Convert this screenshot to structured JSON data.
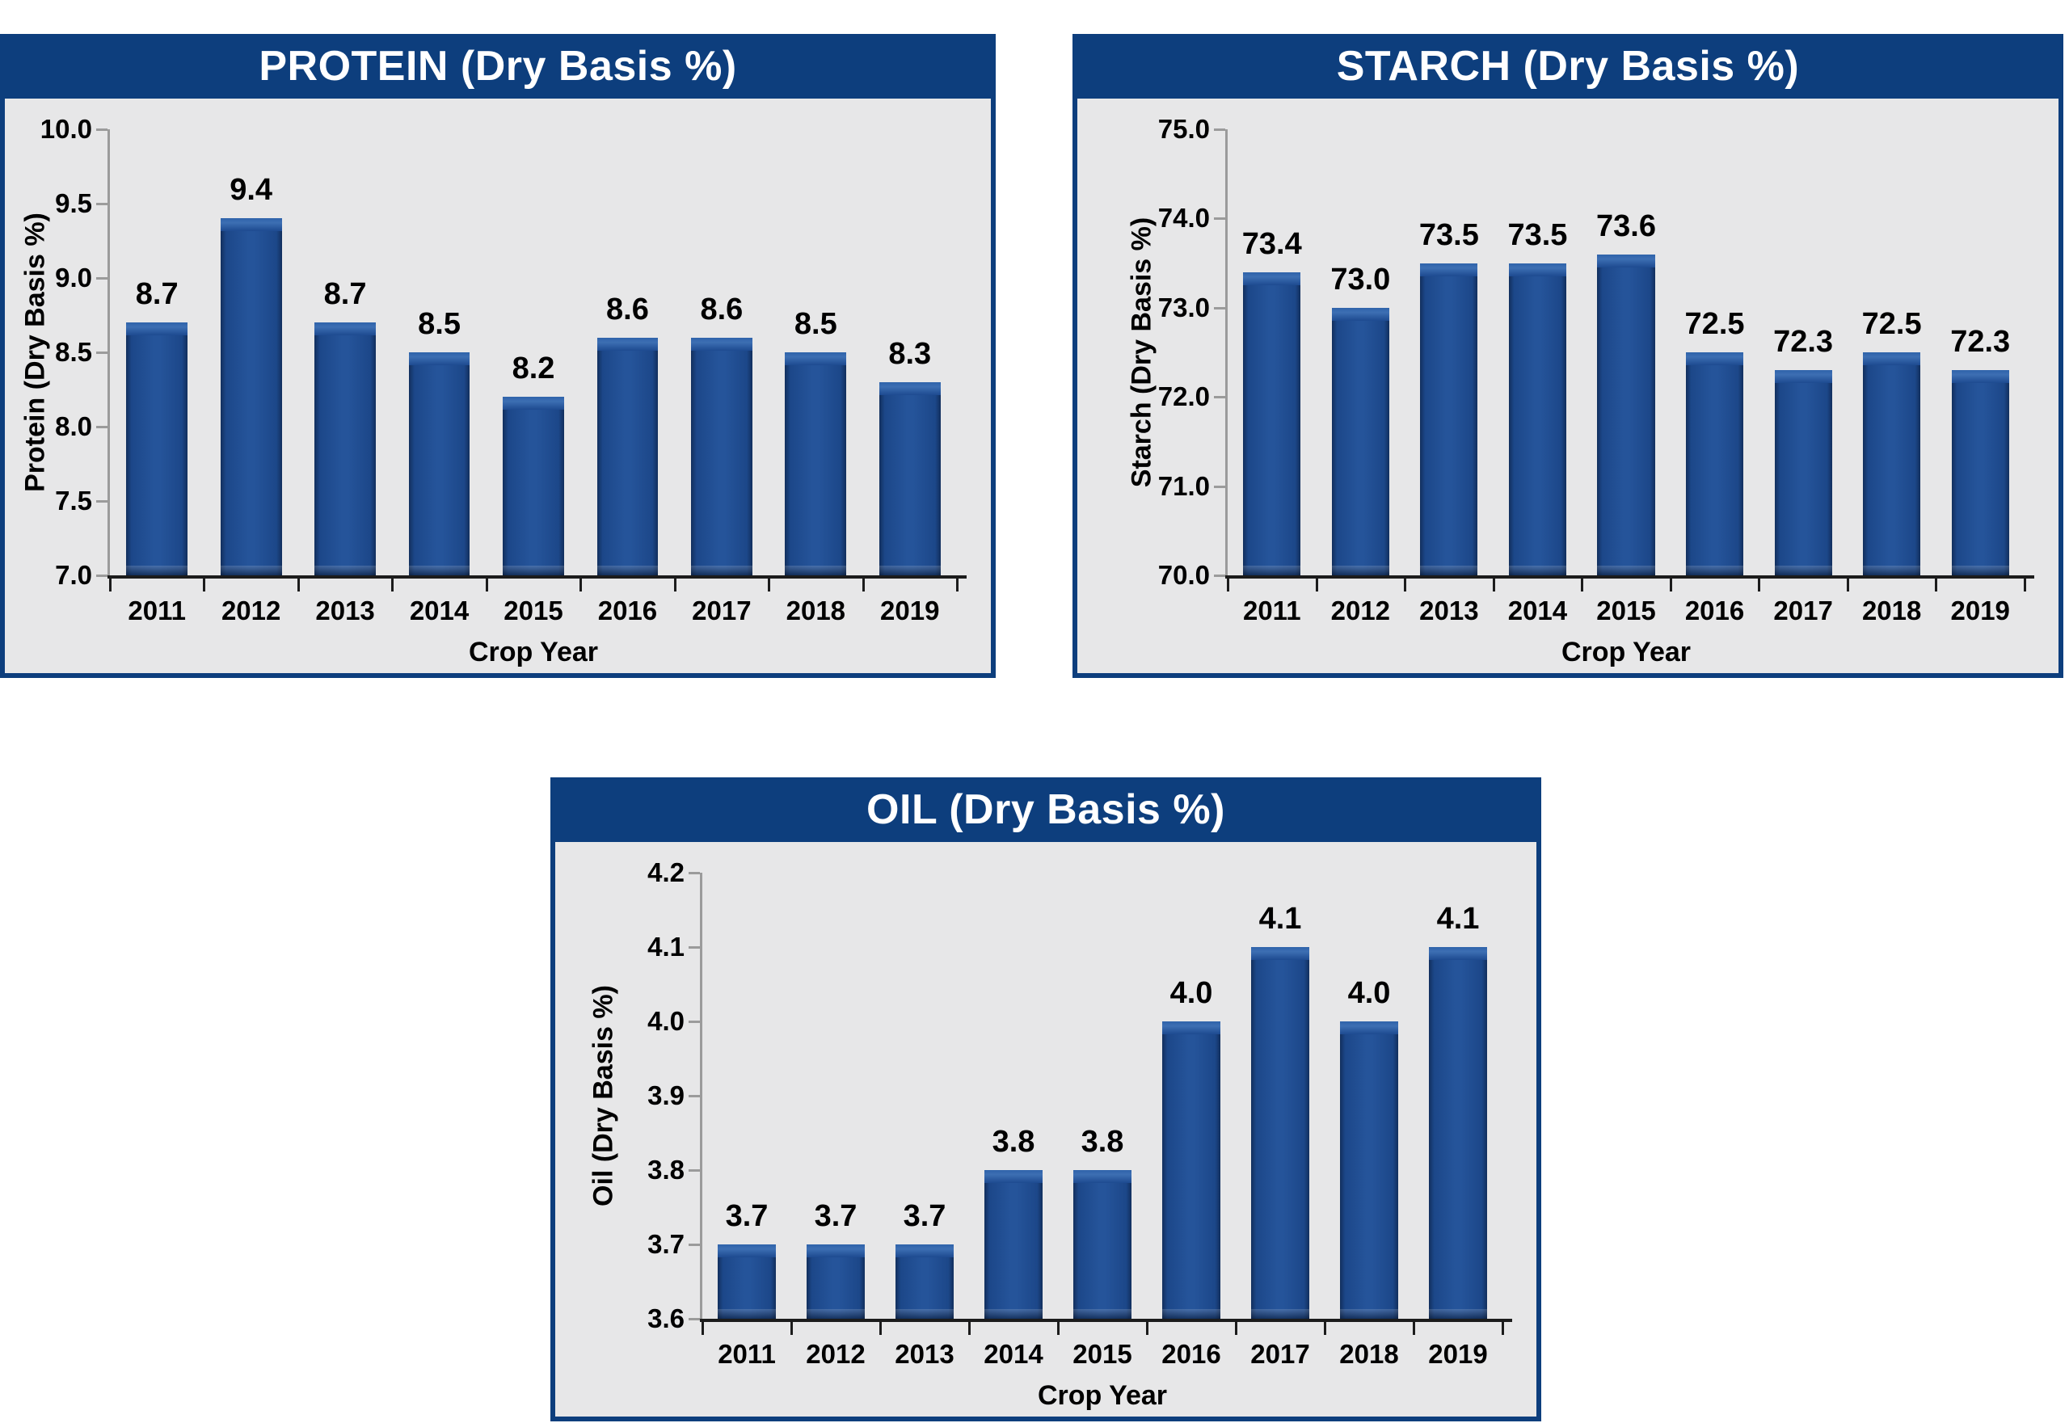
{
  "page": {
    "background": "#ffffff"
  },
  "colors": {
    "header_bar": "#0d3e7d",
    "panel_border": "#0d3e7d",
    "plot_background": "#e7e7e8",
    "bar_body": "#25549a",
    "bar_edge": "#122f5d",
    "bar_highlight": "#3d6fb3",
    "title_text": "#ffffff",
    "label_text": "#000000",
    "y_axis_line": "#9b9b9b",
    "x_axis_line": "#1c1c1c"
  },
  "chart_data": [
    {
      "type": "bar",
      "title": "PROTEIN (Dry Basis %)",
      "ylabel": "Protein (Dry Basis %)",
      "xlabel": "Crop Year",
      "categories": [
        "2011",
        "2012",
        "2013",
        "2014",
        "2015",
        "2016",
        "2017",
        "2018",
        "2019"
      ],
      "values": [
        8.7,
        9.4,
        8.7,
        8.5,
        8.2,
        8.6,
        8.6,
        8.5,
        8.3
      ],
      "value_labels": [
        "8.7",
        "9.4",
        "8.7",
        "8.5",
        "8.2",
        "8.6",
        "8.6",
        "8.5",
        "8.3"
      ],
      "ylim": [
        7.0,
        10.0
      ],
      "ytick_step": 0.5,
      "yticks": [
        "7.0",
        "7.5",
        "8.0",
        "8.5",
        "9.0",
        "9.5",
        "10.0"
      ],
      "grid": false,
      "legend": "none"
    },
    {
      "type": "bar",
      "title": "STARCH (Dry Basis %)",
      "ylabel": "Starch (Dry Basis %)",
      "xlabel": "Crop Year",
      "categories": [
        "2011",
        "2012",
        "2013",
        "2014",
        "2015",
        "2016",
        "2017",
        "2018",
        "2019"
      ],
      "values": [
        73.4,
        73.0,
        73.5,
        73.5,
        73.6,
        72.5,
        72.3,
        72.5,
        72.3
      ],
      "value_labels": [
        "73.4",
        "73.0",
        "73.5",
        "73.5",
        "73.6",
        "72.5",
        "72.3",
        "72.5",
        "72.3"
      ],
      "ylim": [
        70.0,
        75.0
      ],
      "ytick_step": 1.0,
      "yticks": [
        "70.0",
        "71.0",
        "72.0",
        "73.0",
        "74.0",
        "75.0"
      ],
      "grid": false,
      "legend": "none"
    },
    {
      "type": "bar",
      "title": "OIL (Dry Basis %)",
      "ylabel": "Oil (Dry Basis %)",
      "xlabel": "Crop Year",
      "categories": [
        "2011",
        "2012",
        "2013",
        "2014",
        "2015",
        "2016",
        "2017",
        "2018",
        "2019"
      ],
      "values": [
        3.7,
        3.7,
        3.7,
        3.8,
        3.8,
        4.0,
        4.1,
        4.0,
        4.1
      ],
      "value_labels": [
        "3.7",
        "3.7",
        "3.7",
        "3.8",
        "3.8",
        "4.0",
        "4.1",
        "4.0",
        "4.1"
      ],
      "ylim": [
        3.6,
        4.2
      ],
      "ytick_step": 0.1,
      "yticks": [
        "3.6",
        "3.7",
        "3.8",
        "3.9",
        "4.0",
        "4.1",
        "4.2"
      ],
      "grid": false,
      "legend": "none"
    }
  ]
}
